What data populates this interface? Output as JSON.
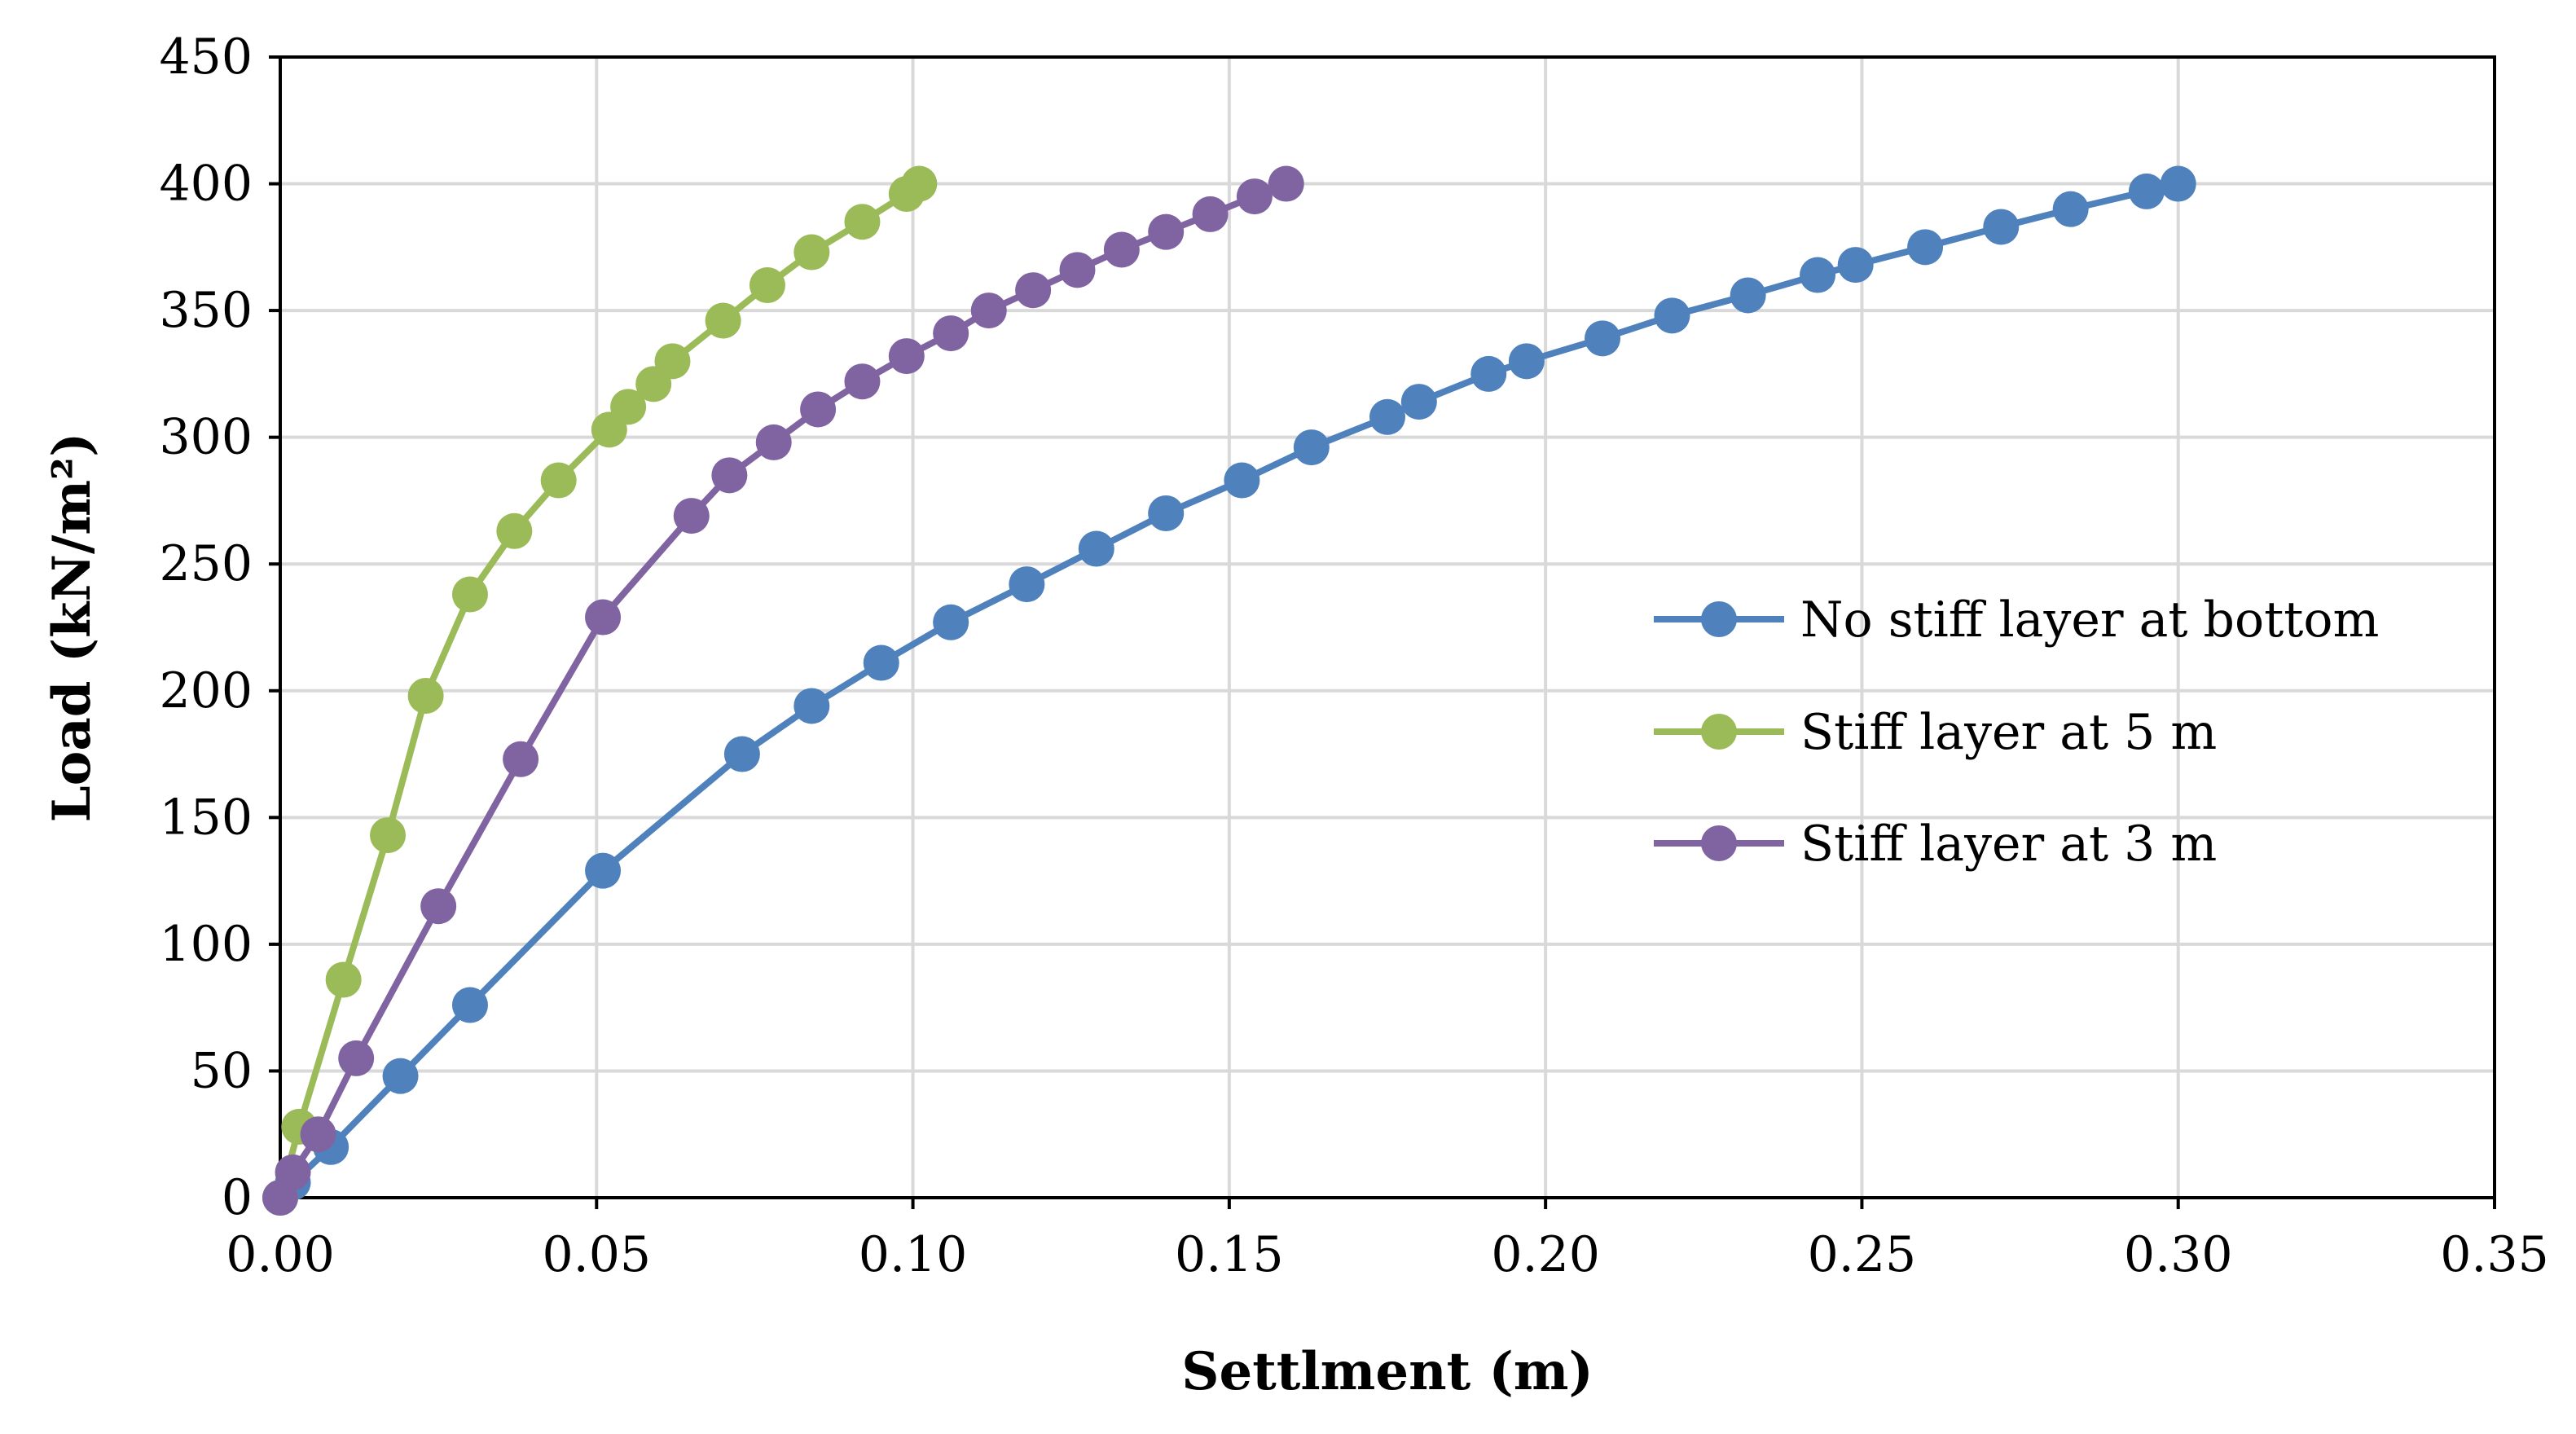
{
  "chart_data": {
    "type": "line",
    "title": "",
    "xlabel": "Settlment (m)",
    "ylabel": "Load (kN/m²)",
    "xlim": [
      0,
      0.35
    ],
    "ylim": [
      0,
      450
    ],
    "x_ticks": [
      0,
      0.05,
      0.1,
      0.15,
      0.2,
      0.25,
      0.3,
      0.35
    ],
    "x_tick_labels": [
      "0.00",
      "0.05",
      "0.10",
      "0.15",
      "0.20",
      "0.25",
      "0.30",
      "0.35"
    ],
    "y_ticks": [
      0,
      50,
      100,
      150,
      200,
      250,
      300,
      350,
      400,
      450
    ],
    "y_tick_labels": [
      "0",
      "50",
      "100",
      "150",
      "200",
      "250",
      "300",
      "350",
      "400",
      "450"
    ],
    "grid": true,
    "legend_position": "right",
    "series": [
      {
        "name": "No stiff layer at bottom",
        "color": "#4f81bd",
        "points": [
          [
            0,
            0
          ],
          [
            0.002,
            6
          ],
          [
            0.008,
            20
          ],
          [
            0.019,
            48
          ],
          [
            0.03,
            76
          ],
          [
            0.051,
            129
          ],
          [
            0.073,
            175
          ],
          [
            0.084,
            194
          ],
          [
            0.095,
            211
          ],
          [
            0.106,
            227
          ],
          [
            0.118,
            242
          ],
          [
            0.129,
            256
          ],
          [
            0.14,
            270
          ],
          [
            0.152,
            283
          ],
          [
            0.163,
            296
          ],
          [
            0.175,
            308
          ],
          [
            0.18,
            314
          ],
          [
            0.191,
            325
          ],
          [
            0.197,
            330
          ],
          [
            0.209,
            339
          ],
          [
            0.22,
            348
          ],
          [
            0.232,
            356
          ],
          [
            0.243,
            364
          ],
          [
            0.249,
            368
          ],
          [
            0.26,
            375
          ],
          [
            0.272,
            383
          ],
          [
            0.283,
            390
          ],
          [
            0.295,
            397
          ],
          [
            0.3,
            400
          ]
        ]
      },
      {
        "name": "Stiff layer at 5 m",
        "color": "#9bbb59",
        "points": [
          [
            0,
            0
          ],
          [
            0.003,
            28
          ],
          [
            0.01,
            86
          ],
          [
            0.017,
            143
          ],
          [
            0.023,
            198
          ],
          [
            0.03,
            238
          ],
          [
            0.037,
            263
          ],
          [
            0.044,
            283
          ],
          [
            0.052,
            303
          ],
          [
            0.055,
            312
          ],
          [
            0.059,
            321
          ],
          [
            0.062,
            330
          ],
          [
            0.07,
            346
          ],
          [
            0.077,
            360
          ],
          [
            0.084,
            373
          ],
          [
            0.092,
            385
          ],
          [
            0.099,
            396
          ],
          [
            0.101,
            400
          ]
        ]
      },
      {
        "name": "Stiff layer at 3 m",
        "color": "#8064a2",
        "points": [
          [
            0,
            0
          ],
          [
            0.002,
            10
          ],
          [
            0.006,
            25
          ],
          [
            0.012,
            55
          ],
          [
            0.025,
            115
          ],
          [
            0.038,
            173
          ],
          [
            0.051,
            229
          ],
          [
            0.065,
            269
          ],
          [
            0.071,
            285
          ],
          [
            0.078,
            298
          ],
          [
            0.085,
            311
          ],
          [
            0.092,
            322
          ],
          [
            0.099,
            332
          ],
          [
            0.106,
            341
          ],
          [
            0.112,
            350
          ],
          [
            0.119,
            358
          ],
          [
            0.126,
            366
          ],
          [
            0.133,
            374
          ],
          [
            0.14,
            381
          ],
          [
            0.147,
            388
          ],
          [
            0.154,
            395
          ],
          [
            0.159,
            400
          ]
        ]
      }
    ]
  }
}
